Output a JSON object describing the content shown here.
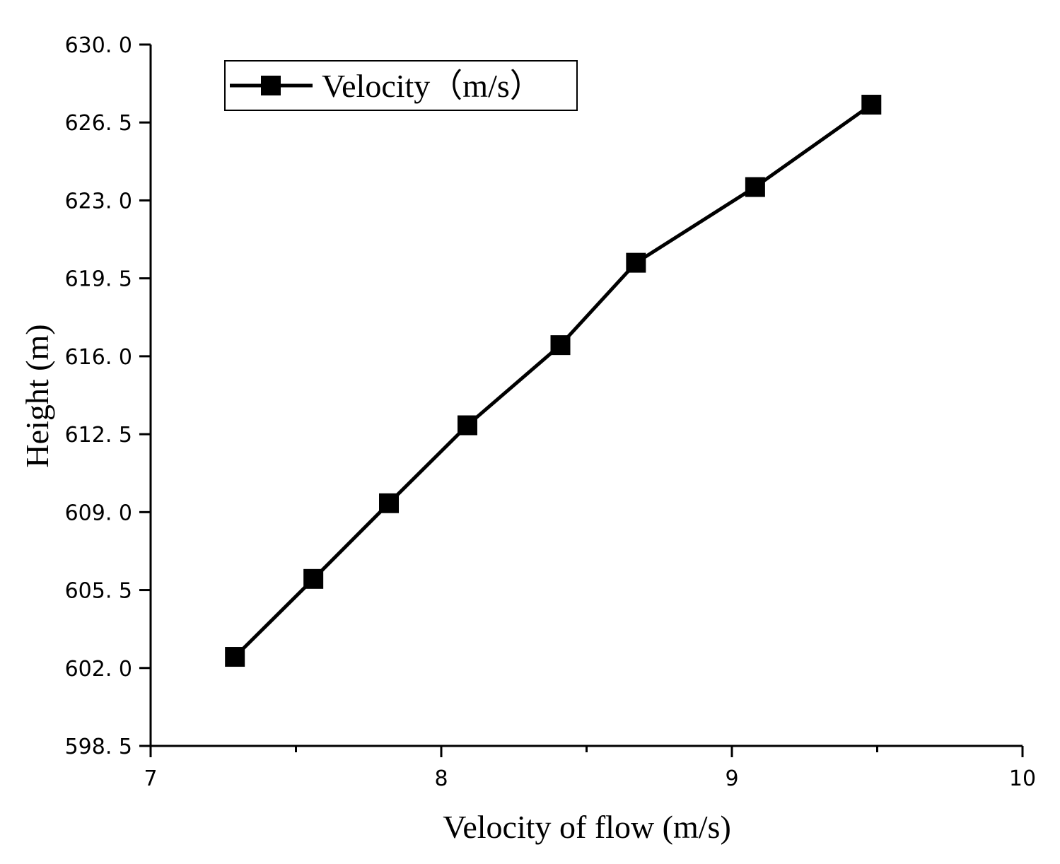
{
  "chart_data": {
    "type": "line",
    "xlabel": "Velocity of flow (m/s)",
    "ylabel": "Height (m)",
    "xlim": [
      7,
      10
    ],
    "ylim": [
      598.5,
      630.0
    ],
    "x_ticks": [
      7,
      8,
      9,
      10
    ],
    "x_tick_labels": [
      "7",
      "8",
      "9",
      "10"
    ],
    "x_minor_ticks": [
      7.5,
      8.5,
      9.5
    ],
    "y_ticks": [
      598.5,
      602.0,
      605.5,
      609.0,
      612.5,
      616.0,
      619.5,
      623.0,
      626.5,
      630.0
    ],
    "y_tick_labels": [
      "598. 5",
      "602. 0",
      "605. 5",
      "609. 0",
      "612. 5",
      "616. 0",
      "619. 5",
      "623. 0",
      "626. 5",
      "630. 0"
    ],
    "grid": false,
    "legend_position": "top-left",
    "series": [
      {
        "name": "Velocity（m/s）",
        "marker": "square",
        "color": "#000000",
        "x": [
          7.29,
          7.56,
          7.82,
          8.09,
          8.41,
          8.67,
          9.08,
          9.48
        ],
        "y": [
          602.5,
          606.0,
          609.4,
          612.9,
          616.5,
          620.2,
          623.6,
          627.3
        ]
      }
    ]
  }
}
